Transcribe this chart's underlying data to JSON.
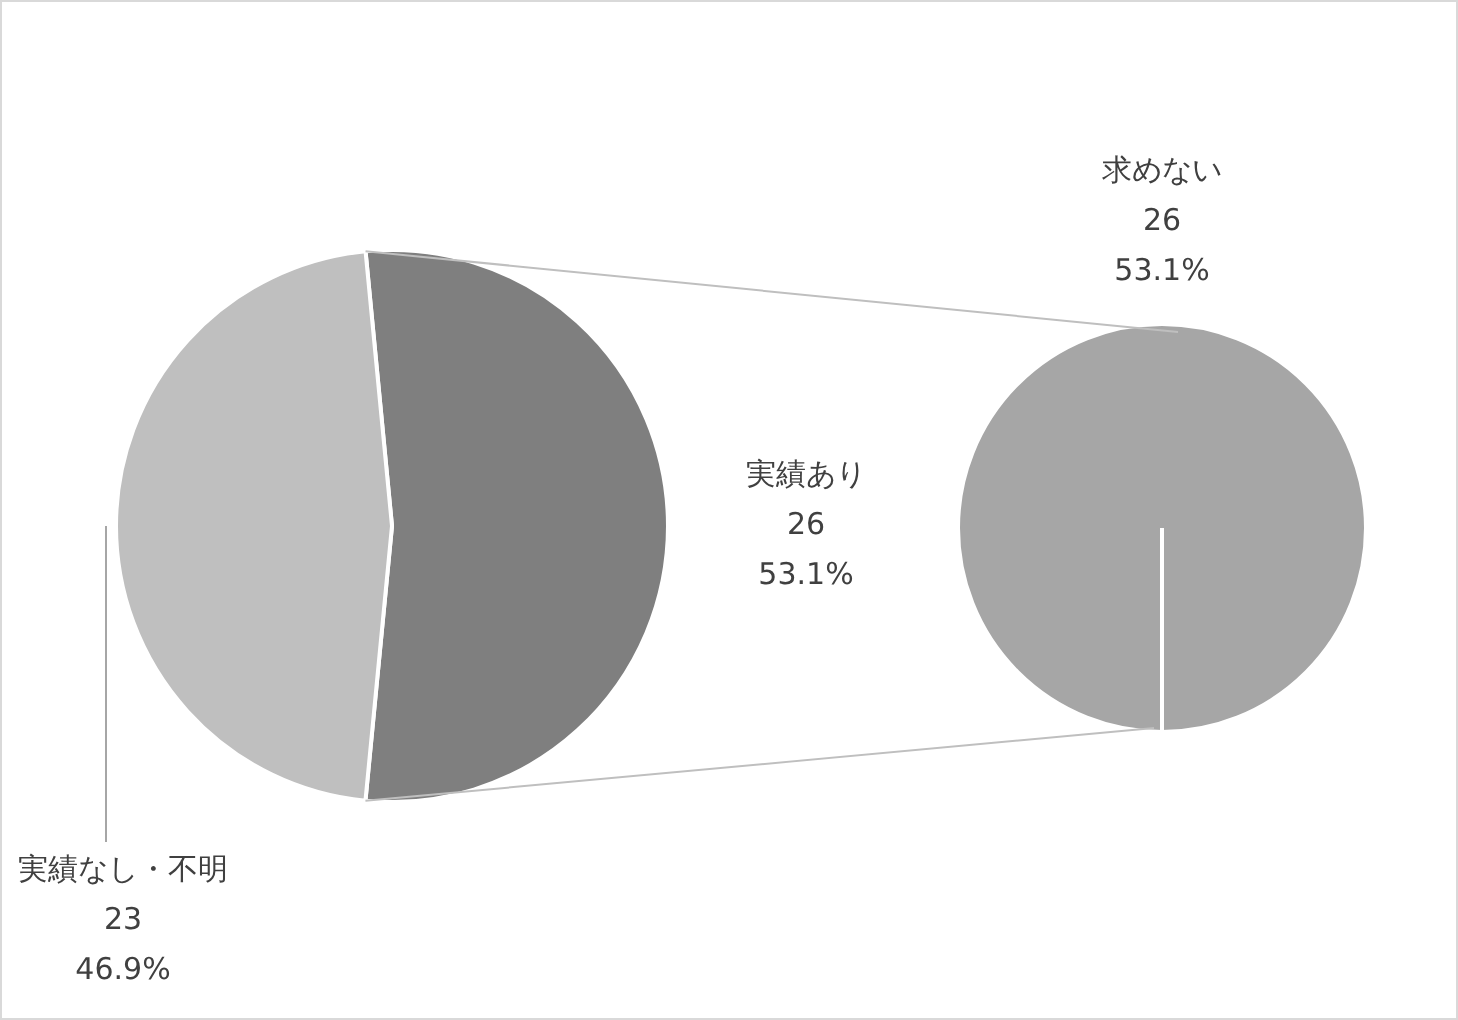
{
  "chart_data": [
    {
      "type": "pie",
      "categories": [
        "実績あり",
        "実績なし・不明"
      ],
      "values": [
        26,
        23
      ],
      "colors": [
        "#7f7f7f",
        "#bfbfbf"
      ],
      "value_labels": [
        "26\n53.1%",
        "23\n46.9%"
      ]
    },
    {
      "type": "pie",
      "categories": [
        "求めない"
      ],
      "values": [
        26
      ],
      "colors": [
        "#a6a6a6"
      ],
      "value_labels": [
        "26\n53.1%"
      ]
    }
  ]
}
